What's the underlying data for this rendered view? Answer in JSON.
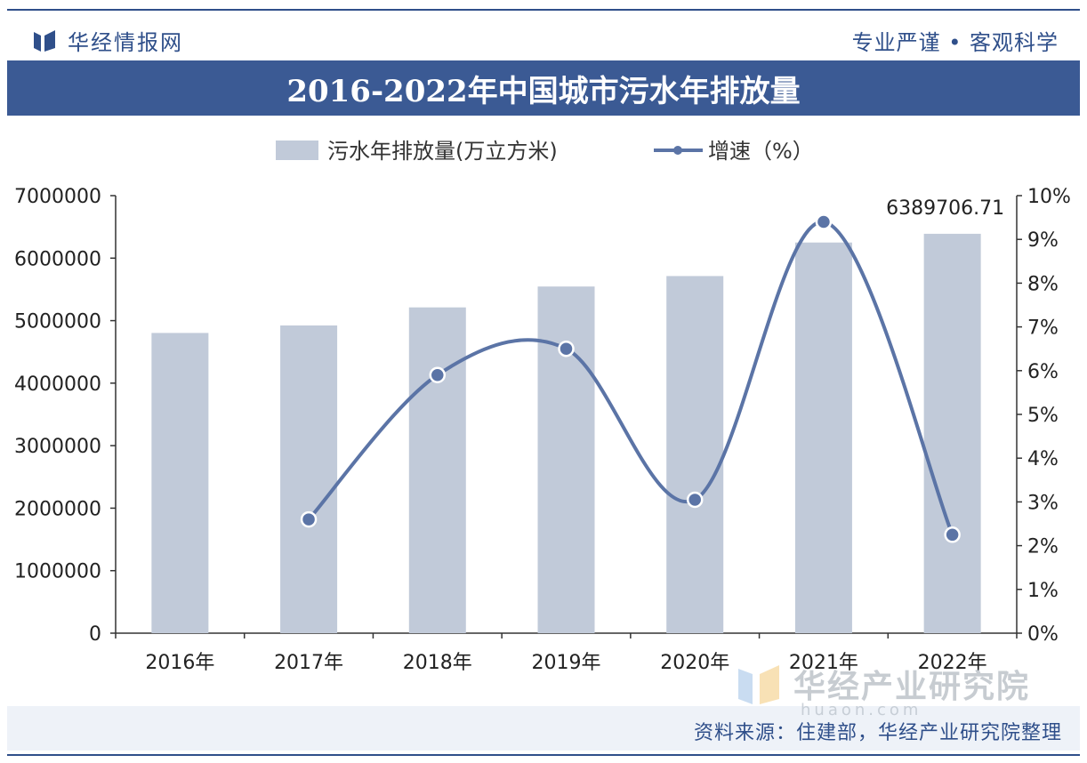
{
  "header": {
    "logo_text": "华经情报网",
    "slogan": "专业严谨 • 客观科学",
    "title": "2016-2022年中国城市污水年排放量"
  },
  "footer": {
    "source": "资料来源：住建部，华经产业研究院整理",
    "watermark_brand": "华经产业研究院",
    "watermark_url": "huaon.com"
  },
  "colors": {
    "header_blue": "#3b5a94",
    "bar_fill": "#c1cad9",
    "line": "#5b74a6"
  },
  "chart_data": {
    "type": "bar+line",
    "title": "2016-2022年中国城市污水年排放量",
    "categories": [
      "2016年",
      "2017年",
      "2018年",
      "2019年",
      "2020年",
      "2021年",
      "2022年"
    ],
    "series": [
      {
        "name": "污水年排放量(万立方米)",
        "type": "bar",
        "axis": "left",
        "values": [
          4803000,
          4923000,
          5212000,
          5546000,
          5713600,
          6250000,
          6389706.71
        ],
        "data_labels": [
          "",
          "",
          "",
          "",
          "",
          "",
          "6389706.71"
        ]
      },
      {
        "name": "增速（%）",
        "type": "line",
        "axis": "right",
        "values": [
          null,
          2.6,
          5.9,
          6.5,
          3.05,
          9.4,
          2.25
        ]
      }
    ],
    "y_left": {
      "min": 0,
      "max": 7000000,
      "step": 1000000,
      "ticks": [
        "0",
        "1000000",
        "2000000",
        "3000000",
        "4000000",
        "5000000",
        "6000000",
        "7000000"
      ]
    },
    "y_right": {
      "min": 0,
      "max": 10,
      "step": 1,
      "ticks": [
        "0%",
        "1%",
        "2%",
        "3%",
        "4%",
        "5%",
        "6%",
        "7%",
        "8%",
        "9%",
        "10%"
      ]
    },
    "legend_position": "top-center",
    "grid": false
  }
}
